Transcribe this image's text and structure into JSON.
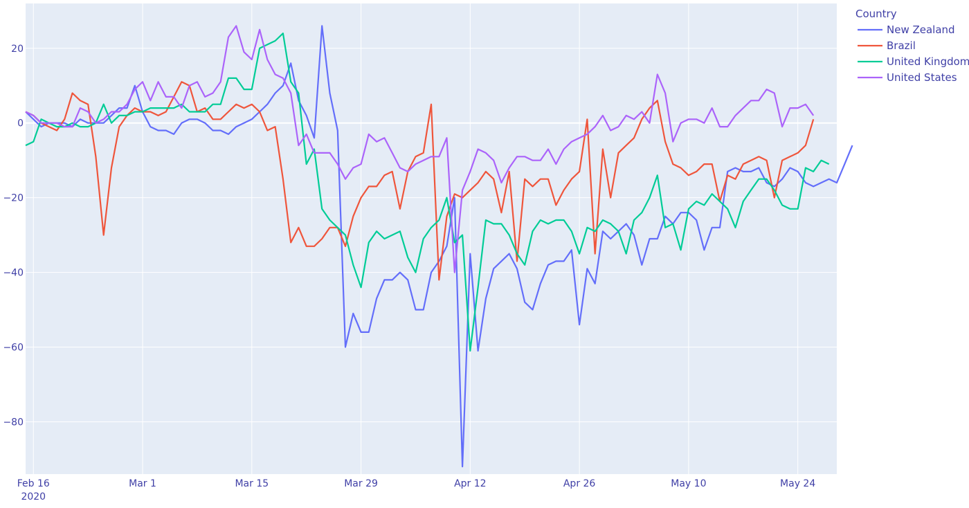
{
  "chart_data": {
    "type": "line",
    "title": "",
    "xlabel": "",
    "ylabel": "",
    "x_start": "2020-02-15",
    "x_range": [
      "2020-02-15",
      "2020-05-29"
    ],
    "ylim": [
      -94,
      32
    ],
    "yticks": [
      20,
      0,
      -20,
      -40,
      -60,
      -80
    ],
    "ytick_labels": [
      "20",
      "0",
      "−20",
      "−40",
      "−60",
      "−80"
    ],
    "xticks": [
      {
        "date": "2020-02-16",
        "label": "Feb 16",
        "sublabel": "2020"
      },
      {
        "date": "2020-03-01",
        "label": "Mar 1"
      },
      {
        "date": "2020-03-15",
        "label": "Mar 15"
      },
      {
        "date": "2020-03-29",
        "label": "Mar 29"
      },
      {
        "date": "2020-04-12",
        "label": "Apr 12"
      },
      {
        "date": "2020-04-26",
        "label": "Apr 26"
      },
      {
        "date": "2020-05-10",
        "label": "May 10"
      },
      {
        "date": "2020-05-24",
        "label": "May 24"
      }
    ],
    "grid": true,
    "legend": {
      "title": "Country",
      "position": "top-right"
    },
    "series": [
      {
        "name": "New Zealand",
        "color": "#636efa",
        "values": [
          3,
          1,
          -1,
          0,
          0,
          0,
          -1,
          1,
          0,
          0,
          0,
          2,
          4,
          4,
          10,
          3,
          -1,
          -2,
          -2,
          -3,
          0,
          1,
          1,
          0,
          -2,
          -2,
          -3,
          -1,
          0,
          1,
          3,
          5,
          8,
          10,
          16,
          6,
          2,
          -4,
          26,
          8,
          -2,
          -60,
          -51,
          -56,
          -56,
          -47,
          -42,
          -42,
          -40,
          -42,
          -50,
          -50,
          -40,
          -37,
          -33,
          -20,
          -92,
          -35,
          -61,
          -47,
          -39,
          -37,
          -35,
          -39,
          -48,
          -50,
          -43,
          -38,
          -37,
          -37,
          -34,
          -54,
          -39,
          -43,
          -29,
          -31,
          -29,
          -27,
          -30,
          -38,
          -31,
          -31,
          -25,
          -27,
          -24,
          -24,
          -26,
          -34,
          -28,
          -28,
          -13,
          -12,
          -13,
          -13,
          -12,
          -16,
          -17,
          -15,
          -12,
          -13,
          -16,
          -17,
          -16,
          -15,
          -16,
          -11,
          -6
        ]
      },
      {
        "name": "Brazil",
        "color": "#ef553b",
        "values": [
          3,
          2,
          0,
          -1,
          -2,
          1,
          8,
          6,
          5,
          -9,
          -30,
          -12,
          -1,
          2,
          4,
          3,
          3,
          2,
          3,
          7,
          11,
          10,
          3,
          4,
          1,
          1,
          3,
          5,
          4,
          5,
          3,
          -2,
          -1,
          -15,
          -32,
          -28,
          -33,
          -33,
          -31,
          -28,
          -28,
          -33,
          -25,
          -20,
          -17,
          -17,
          -14,
          -13,
          -23,
          -13,
          -9,
          -8,
          5,
          -42,
          -25,
          -19,
          -20,
          -18,
          -16,
          -13,
          -15,
          -24,
          -13,
          -37,
          -15,
          -17,
          -15,
          -15,
          -22,
          -18,
          -15,
          -13,
          1,
          -35,
          -7,
          -20,
          -8,
          -6,
          -4,
          1,
          4,
          6,
          -5,
          -11,
          -12,
          -14,
          -13,
          -11,
          -11,
          -21,
          -14,
          -15,
          -11,
          -10,
          -9,
          -10,
          -20,
          -10,
          -9,
          -8,
          -6,
          1
        ]
      },
      {
        "name": "United Kingdom",
        "color": "#00cc96",
        "values": [
          -6,
          -5,
          1,
          0,
          -1,
          -1,
          0,
          -1,
          -1,
          0,
          5,
          0,
          2,
          2,
          3,
          3,
          4,
          4,
          4,
          4,
          5,
          3,
          3,
          3,
          5,
          5,
          12,
          12,
          9,
          9,
          20,
          21,
          22,
          24,
          11,
          8,
          -11,
          -7,
          -23,
          -26,
          -28,
          -30,
          -38,
          -44,
          -32,
          -29,
          -31,
          -30,
          -29,
          -36,
          -40,
          -31,
          -28,
          -26,
          -20,
          -32,
          -30,
          -61,
          -44,
          -26,
          -27,
          -27,
          -30,
          -35,
          -38,
          -29,
          -26,
          -27,
          -26,
          -26,
          -29,
          -35,
          -28,
          -29,
          -26,
          -27,
          -29,
          -35,
          -26,
          -24,
          -20,
          -14,
          -28,
          -27,
          -34,
          -23,
          -21,
          -22,
          -19,
          -21,
          -23,
          -28,
          -21,
          -18,
          -15,
          -15,
          -18,
          -22,
          -23,
          -23,
          -12,
          -13,
          -10,
          -11
        ]
      },
      {
        "name": "United States",
        "color": "#ab63fa",
        "values": [
          3,
          2,
          0,
          0,
          0,
          -1,
          -1,
          4,
          3,
          0,
          1,
          3,
          3,
          5,
          9,
          11,
          6,
          11,
          7,
          7,
          4,
          10,
          11,
          7,
          8,
          11,
          23,
          26,
          19,
          17,
          25,
          17,
          13,
          12,
          8,
          -6,
          -3,
          -8,
          -8,
          -8,
          -11,
          -15,
          -12,
          -11,
          -3,
          -5,
          -4,
          -8,
          -12,
          -13,
          -11,
          -10,
          -9,
          -9,
          -4,
          -40,
          -18,
          -13,
          -7,
          -8,
          -10,
          -16,
          -12,
          -9,
          -9,
          -10,
          -10,
          -7,
          -11,
          -7,
          -5,
          -4,
          -3,
          -1,
          2,
          -2,
          -1,
          2,
          1,
          3,
          0,
          13,
          8,
          -5,
          0,
          1,
          1,
          0,
          4,
          -1,
          -1,
          2,
          4,
          6,
          6,
          9,
          8,
          -1,
          4,
          4,
          5,
          2
        ]
      }
    ]
  }
}
